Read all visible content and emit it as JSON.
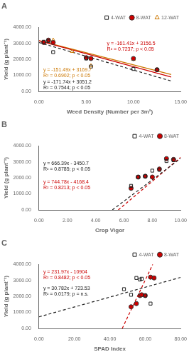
{
  "chart_data": [
    {
      "type": "scatter",
      "title": "A",
      "x_label": "Weed Density (Number per 3m²)",
      "y_label": "Yield (g plant⁻¹)",
      "xlim": [
        0,
        15
      ],
      "ylim": [
        0,
        4000
      ],
      "xticks": [
        {
          "value": 0,
          "label": "0.00"
        },
        {
          "value": 5,
          "label": "5.00"
        },
        {
          "value": 10,
          "label": "10.00"
        },
        {
          "value": 15,
          "label": "15.00"
        }
      ],
      "yticks": [
        {
          "value": 0,
          "label": "0.00"
        },
        {
          "value": 1000,
          "label": "1000.00"
        },
        {
          "value": 2000,
          "label": "2000.00"
        },
        {
          "value": 3000,
          "label": "3000.00"
        },
        {
          "value": 4000,
          "label": "4000.00"
        }
      ],
      "grid": false,
      "legend": "upper right",
      "series": [
        {
          "name": "4-WAT",
          "color": "#222222",
          "marker": "open_square",
          "x": [
            0.5,
            1.0,
            1.5,
            5.0,
            5.5,
            10.0,
            12.5
          ],
          "values": [
            3100,
            3150,
            2450,
            2050,
            1550,
            1400,
            1350
          ],
          "fit": {
            "x": [
              0,
              14
            ],
            "values": [
              3051.2,
              646.84
            ],
            "line_style": "dashed"
          },
          "equation": [
            "y = -171.74x + 3051.2",
            "R² = 0.7544; p < 0.05"
          ]
        },
        {
          "name": "8-WAT",
          "color": "#cc0000",
          "marker": "circle",
          "x": [
            0.5,
            1.0,
            1.5,
            5.0,
            5.5,
            10.0,
            12.5
          ],
          "values": [
            3050,
            3200,
            3050,
            2100,
            2050,
            2050,
            1350
          ],
          "fit": {
            "x": [
              0,
              14
            ],
            "values": [
              3156.5,
              896.76
            ],
            "line_style": "solid"
          },
          "equation": [
            "y = -161.41x + 3156.5",
            "R² = 0.7237; p < 0.05"
          ]
        },
        {
          "name": "12-WAT",
          "color": "#cc7700",
          "marker": "open_triangle",
          "x": [
            1.5,
            3.5,
            5.0,
            5.5,
            10.0,
            12.5
          ],
          "values": [
            3200,
            2500,
            2100,
            1600,
            2000,
            1350
          ],
          "fit": {
            "x": [
              0,
              14
            ],
            "values": [
              3169.7,
              1048.84
            ],
            "line_style": "solid"
          },
          "equation": [
            "y = -151.49x + 3169.7",
            "R² = 0.6902; p < 0.05"
          ]
        }
      ]
    },
    {
      "type": "scatter",
      "title": "B",
      "x_label": "Crop Vigor",
      "y_label": "Yield (g plant⁻¹)",
      "xlim": [
        0,
        10
      ],
      "ylim": [
        0,
        4000
      ],
      "xticks": [
        {
          "value": 0,
          "label": "0.00"
        },
        {
          "value": 2,
          "label": "2.00"
        },
        {
          "value": 4,
          "label": "4.00"
        },
        {
          "value": 6,
          "label": "6.00"
        },
        {
          "value": 8,
          "label": "8.00"
        },
        {
          "value": 10,
          "label": "10.00"
        }
      ],
      "yticks": [
        {
          "value": 0,
          "label": "0.00"
        },
        {
          "value": 1000,
          "label": "1000.00"
        },
        {
          "value": 2000,
          "label": "2000.00"
        },
        {
          "value": 3000,
          "label": "3000.00"
        },
        {
          "value": 4000,
          "label": "4000.00"
        }
      ],
      "grid": false,
      "legend": "upper right",
      "series": [
        {
          "name": "4-WAT",
          "color": "#222222",
          "marker": "open_square",
          "x": [
            6.5,
            7.0,
            7.5,
            8.0,
            8.5,
            9.0,
            9.5
          ],
          "values": [
            1500,
            2050,
            2100,
            2450,
            2500,
            3050,
            3100
          ],
          "fit": {
            "x": [
              5.1782,
              10
            ],
            "values": [
              0,
              3213.2
            ],
            "line_style": "dashed"
          },
          "equation": [
            "y = 666.39x - 3450.7",
            "R² = 0.8785; p < 0.05"
          ]
        },
        {
          "name": "8-WAT",
          "color": "#cc0000",
          "marker": "circle",
          "x": [
            6.5,
            7.0,
            7.5,
            8.0,
            8.5,
            9.0,
            9.5
          ],
          "values": [
            1350,
            2050,
            2100,
            2050,
            2550,
            3200,
            3150
          ],
          "fit": {
            "x": [
              5.5968,
              10
            ],
            "values": [
              0,
              3279.4
            ],
            "line_style": "dashed"
          },
          "equation": [
            "y = 744.78x - 4168.4",
            "R² = 0.8213; p < 0.05"
          ]
        }
      ]
    },
    {
      "type": "scatter",
      "title": "C",
      "x_label": "SPAD Index",
      "y_label": "Yield (g plant⁻¹)",
      "xlim": [
        0,
        80
      ],
      "ylim": [
        0,
        4000
      ],
      "xticks": [
        {
          "value": 0,
          "label": "0.00"
        },
        {
          "value": 20,
          "label": "20.00"
        },
        {
          "value": 40,
          "label": "40.00"
        },
        {
          "value": 60,
          "label": "60.00"
        },
        {
          "value": 80,
          "label": "80.00"
        }
      ],
      "yticks": [
        {
          "value": 0,
          "label": "0.00"
        },
        {
          "value": 1000,
          "label": "1000.00"
        },
        {
          "value": 2000,
          "label": "2000.00"
        },
        {
          "value": 3000,
          "label": "3000.00"
        },
        {
          "value": 4000,
          "label": "4000.00"
        }
      ],
      "grid": false,
      "legend": "upper right",
      "series": [
        {
          "name": "4-WAT",
          "color": "#222222",
          "marker": "open_square",
          "x": [
            48,
            52,
            55,
            57,
            58,
            60,
            63
          ],
          "values": [
            2450,
            2100,
            3150,
            3050,
            3100,
            2050,
            1550
          ],
          "fit": {
            "x": [
              0,
              80
            ],
            "values": [
              723.53,
              3186.09
            ],
            "line_style": "dashed"
          },
          "equation": [
            "y = 30.782x + 723.53",
            "R² = 0.0179; p = n.s."
          ]
        },
        {
          "name": "8-WAT",
          "color": "#cc0000",
          "marker": "circle",
          "x": [
            52,
            55,
            57,
            58,
            60,
            63,
            65
          ],
          "values": [
            1350,
            1550,
            2050,
            2100,
            2050,
            3200,
            3150
          ],
          "fit": {
            "x": [
              47.0061,
              64.2497
            ],
            "values": [
              0,
              4000
            ],
            "line_style": "dashed"
          },
          "equation": [
            "y = 231.97x - 10904",
            "R² = 0.8482; p < 0.05"
          ]
        }
      ]
    }
  ]
}
